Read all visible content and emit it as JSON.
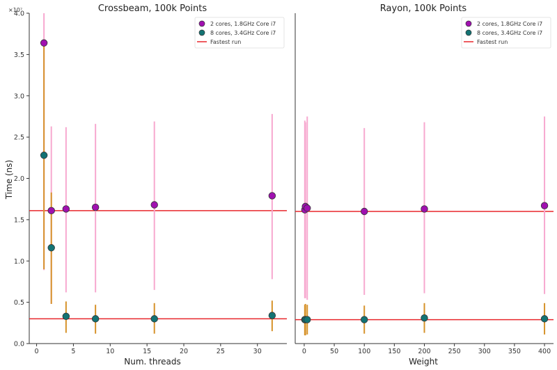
{
  "colors": {
    "series_2core": "#a010b0",
    "series_8core": "#137373",
    "err_2core": "#f7a8cf",
    "err_8core": "#d6922a",
    "fastest": "#e8262b"
  },
  "chart_data": [
    {
      "type": "scatter",
      "title": "Crossbeam, 100k Points",
      "xlabel": "Num. threads",
      "ylabel": "Time (ns)",
      "y_exponent": "×10⁷",
      "xlim": [
        -1,
        34
      ],
      "ylim": [
        0,
        4.0
      ],
      "y_scale_note": "values in units of 1e7 ns",
      "xticks": [
        0,
        5,
        10,
        15,
        20,
        25,
        30
      ],
      "yticks": [
        0.0,
        0.5,
        1.0,
        1.5,
        2.0,
        2.5,
        3.0,
        3.5,
        4.0
      ],
      "legend_position": "top-right",
      "grid": false,
      "series": [
        {
          "name": "2 cores, 1.8GHz Core i7",
          "points": [
            {
              "x": 1,
              "y": 3.64,
              "low": 0.89,
              "high": 4.0
            },
            {
              "x": 2,
              "y": 1.61,
              "low": 0.48,
              "high": 2.63
            },
            {
              "x": 4,
              "y": 1.63,
              "low": 0.62,
              "high": 2.62
            },
            {
              "x": 8,
              "y": 1.65,
              "low": 0.62,
              "high": 2.66
            },
            {
              "x": 16,
              "y": 1.68,
              "low": 0.65,
              "high": 2.69
            },
            {
              "x": 32,
              "y": 1.79,
              "low": 0.78,
              "high": 2.78
            }
          ]
        },
        {
          "name": "8 cores, 3.4GHz Core i7",
          "points": [
            {
              "x": 1,
              "y": 2.28,
              "low": 0.9,
              "high": 3.65
            },
            {
              "x": 2,
              "y": 1.16,
              "low": 0.48,
              "high": 1.83
            },
            {
              "x": 4,
              "y": 0.33,
              "low": 0.13,
              "high": 0.51
            },
            {
              "x": 8,
              "y": 0.3,
              "low": 0.12,
              "high": 0.47
            },
            {
              "x": 16,
              "y": 0.3,
              "low": 0.12,
              "high": 0.49
            },
            {
              "x": 32,
              "y": 0.34,
              "low": 0.15,
              "high": 0.52
            }
          ]
        }
      ],
      "fastest_run_label": "Fastest run",
      "fastest_runs": [
        1.61,
        0.3
      ]
    },
    {
      "type": "scatter",
      "title": "Rayon, 100k Points",
      "xlabel": "Weight",
      "ylabel": "",
      "xlim": [
        -15,
        415
      ],
      "ylim": [
        0,
        4.0
      ],
      "xticks": [
        0,
        50,
        100,
        150,
        200,
        250,
        300,
        350,
        400
      ],
      "legend_position": "top-right",
      "grid": false,
      "series": [
        {
          "name": "2 cores, 1.8GHz Core i7",
          "points": [
            {
              "x": 1,
              "y": 1.62,
              "low": 0.55,
              "high": 2.7
            },
            {
              "x": 2,
              "y": 1.66,
              "low": 0.55,
              "high": 2.68
            },
            {
              "x": 5,
              "y": 1.64,
              "low": 0.53,
              "high": 2.75
            },
            {
              "x": 100,
              "y": 1.6,
              "low": 0.59,
              "high": 2.61
            },
            {
              "x": 200,
              "y": 1.63,
              "low": 0.61,
              "high": 2.68
            },
            {
              "x": 400,
              "y": 1.67,
              "low": 0.6,
              "high": 2.75
            }
          ]
        },
        {
          "name": "8 cores, 3.4GHz Core i7",
          "points": [
            {
              "x": 1,
              "y": 0.29,
              "low": 0.1,
              "high": 0.47
            },
            {
              "x": 2,
              "y": 0.29,
              "low": 0.1,
              "high": 0.48
            },
            {
              "x": 5,
              "y": 0.29,
              "low": 0.11,
              "high": 0.47
            },
            {
              "x": 100,
              "y": 0.29,
              "low": 0.12,
              "high": 0.46
            },
            {
              "x": 200,
              "y": 0.31,
              "low": 0.13,
              "high": 0.49
            },
            {
              "x": 400,
              "y": 0.3,
              "low": 0.11,
              "high": 0.49
            }
          ]
        }
      ],
      "fastest_run_label": "Fastest run",
      "fastest_runs": [
        1.6,
        0.29
      ]
    }
  ]
}
